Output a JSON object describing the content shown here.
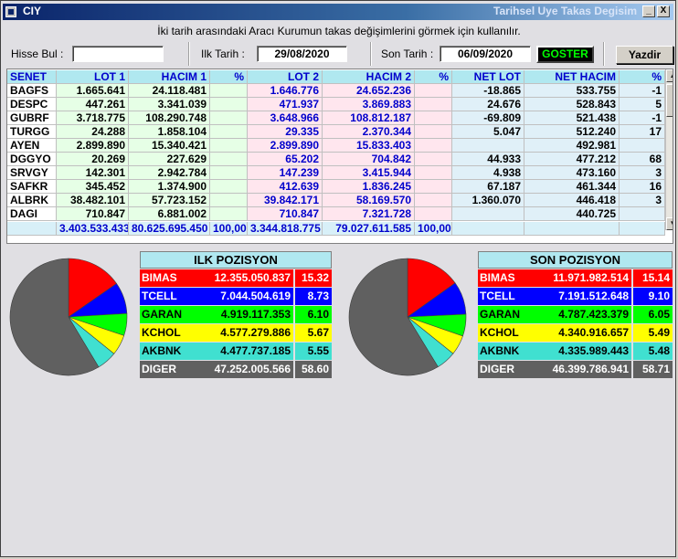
{
  "window": {
    "title_left": "CIY",
    "title_right": "Tarihsel Uye Takas Degisim",
    "minimize": "_",
    "close": "X"
  },
  "instruction": "İki tarih arasındaki  Aracı Kurumun takas değişimlerini görmek için kullanılır.",
  "filters": {
    "hisse_label": "Hisse Bul :",
    "hisse_value": "",
    "ilk_label": "Ilk Tarih :",
    "ilk_value": "29/08/2020",
    "son_label": "Son Tarih :",
    "son_value": "06/09/2020",
    "goster": "GOSTER",
    "yazdir": "Yazdir"
  },
  "table": {
    "headers": [
      "SENET",
      "LOT 1",
      "HACIM 1",
      "%",
      "LOT 2",
      "HACIM 2",
      "%",
      "NET LOT",
      "NET HACIM",
      "%"
    ],
    "rows": [
      [
        "BAGFS",
        "1.665.641",
        "24.118.481",
        "",
        "1.646.776",
        "24.652.236",
        "",
        "-18.865",
        "533.755",
        "-1"
      ],
      [
        "DESPC",
        "447.261",
        "3.341.039",
        "",
        "471.937",
        "3.869.883",
        "",
        "24.676",
        "528.843",
        "5"
      ],
      [
        "GUBRF",
        "3.718.775",
        "108.290.748",
        "",
        "3.648.966",
        "108.812.187",
        "",
        "-69.809",
        "521.438",
        "-1"
      ],
      [
        "TURGG",
        "24.288",
        "1.858.104",
        "",
        "29.335",
        "2.370.344",
        "",
        "5.047",
        "512.240",
        "17"
      ],
      [
        "AYEN",
        "2.899.890",
        "15.340.421",
        "",
        "2.899.890",
        "15.833.403",
        "",
        "",
        "492.981",
        ""
      ],
      [
        "DGGYO",
        "20.269",
        "227.629",
        "",
        "65.202",
        "704.842",
        "",
        "44.933",
        "477.212",
        "68"
      ],
      [
        "SRVGY",
        "142.301",
        "2.942.784",
        "",
        "147.239",
        "3.415.944",
        "",
        "4.938",
        "473.160",
        "3"
      ],
      [
        "SAFKR",
        "345.452",
        "1.374.900",
        "",
        "412.639",
        "1.836.245",
        "",
        "67.187",
        "461.344",
        "16"
      ],
      [
        "ALBRK",
        "38.482.101",
        "57.723.152",
        "",
        "39.842.171",
        "58.169.570",
        "",
        "1.360.070",
        "446.418",
        "3"
      ],
      [
        "DAGI",
        "710.847",
        "6.881.002",
        "",
        "710.847",
        "7.321.728",
        "",
        "",
        "440.725",
        ""
      ]
    ],
    "totals": [
      "",
      "3.403.533.433",
      "80.625.695.450",
      "100,00",
      "3.344.818.775",
      "79.027.611.585",
      "100,00",
      "",
      "",
      ""
    ]
  },
  "ilk": {
    "title": "ILK POZISYON",
    "items": [
      {
        "name": "BIMAS",
        "value": "12.355.050.837",
        "pct": "15.32",
        "share": 15.32,
        "color": "#ff0000",
        "text": "#ffffff"
      },
      {
        "name": "TCELL",
        "value": "7.044.504.619",
        "pct": "8.73",
        "share": 8.73,
        "color": "#0000ff",
        "text": "#ffffff"
      },
      {
        "name": "GARAN",
        "value": "4.919.117.353",
        "pct": "6.10",
        "share": 6.1,
        "color": "#00ff00",
        "text": "#000000"
      },
      {
        "name": "KCHOL",
        "value": "4.577.279.886",
        "pct": "5.67",
        "share": 5.67,
        "color": "#ffff00",
        "text": "#000000"
      },
      {
        "name": "AKBNK",
        "value": "4.477.737.185",
        "pct": "5.55",
        "share": 5.55,
        "color": "#40e0d0",
        "text": "#000000"
      },
      {
        "name": "DIGER",
        "value": "47.252.005.566",
        "pct": "58.60",
        "share": 58.6,
        "color": "#606060",
        "text": "#ffffff"
      }
    ]
  },
  "son": {
    "title": "SON POZISYON",
    "items": [
      {
        "name": "BIMAS",
        "value": "11.971.982.514",
        "pct": "15.14",
        "share": 15.14,
        "color": "#ff0000",
        "text": "#ffffff"
      },
      {
        "name": "TCELL",
        "value": "7.191.512.648",
        "pct": "9.10",
        "share": 9.1,
        "color": "#0000ff",
        "text": "#ffffff"
      },
      {
        "name": "GARAN",
        "value": "4.787.423.379",
        "pct": "6.05",
        "share": 6.05,
        "color": "#00ff00",
        "text": "#000000"
      },
      {
        "name": "KCHOL",
        "value": "4.340.916.657",
        "pct": "5.49",
        "share": 5.49,
        "color": "#ffff00",
        "text": "#000000"
      },
      {
        "name": "AKBNK",
        "value": "4.335.989.443",
        "pct": "5.48",
        "share": 5.48,
        "color": "#40e0d0",
        "text": "#000000"
      },
      {
        "name": "DIGER",
        "value": "46.399.786.941",
        "pct": "58.71",
        "share": 58.71,
        "color": "#606060",
        "text": "#ffffff"
      }
    ]
  }
}
